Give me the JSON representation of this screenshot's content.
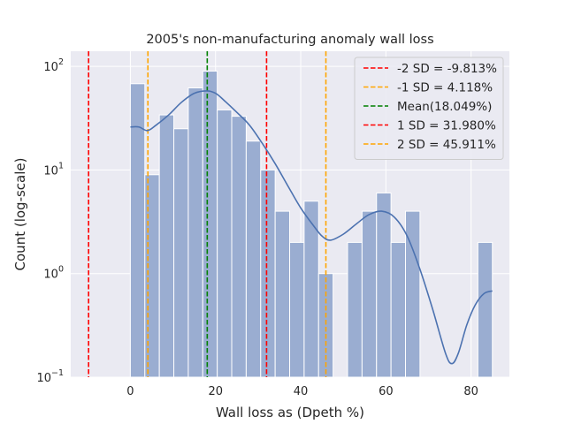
{
  "chart_data": {
    "type": "histogram",
    "title": "2005's non-manufacturing anomaly wall loss",
    "xlabel": "Wall loss as (Dpeth %)",
    "ylabel": "Count (log-scale)",
    "yscale": "log",
    "xlim": [
      -14,
      89
    ],
    "ylim": [
      0.1,
      140
    ],
    "xticks": [
      0,
      20,
      40,
      60,
      80
    ],
    "yticks": [
      {
        "value": 0.1,
        "base": "10",
        "exp": "−1"
      },
      {
        "value": 1,
        "base": "10",
        "exp": "0"
      },
      {
        "value": 10,
        "base": "10",
        "exp": "1"
      },
      {
        "value": 100,
        "base": "10",
        "exp": "2"
      }
    ],
    "grid": true,
    "legend_position": "top-right",
    "colors": {
      "background": "#eaeaf2",
      "bar_fill": "#9aadd1",
      "kde_line": "#4c72b0",
      "sd2": "#ff0000",
      "sd1": "#ffa500",
      "mean": "#008000"
    },
    "bins": [
      {
        "x0": 0.0,
        "x1": 3.4,
        "count": 68
      },
      {
        "x0": 3.4,
        "x1": 6.8,
        "count": 9
      },
      {
        "x0": 6.8,
        "x1": 10.2,
        "count": 34
      },
      {
        "x0": 10.2,
        "x1": 13.6,
        "count": 25
      },
      {
        "x0": 13.6,
        "x1": 17.0,
        "count": 62
      },
      {
        "x0": 17.0,
        "x1": 20.4,
        "count": 90
      },
      {
        "x0": 20.4,
        "x1": 23.8,
        "count": 38
      },
      {
        "x0": 23.8,
        "x1": 27.2,
        "count": 33
      },
      {
        "x0": 27.2,
        "x1": 30.6,
        "count": 19
      },
      {
        "x0": 30.6,
        "x1": 34.0,
        "count": 10
      },
      {
        "x0": 34.0,
        "x1": 37.4,
        "count": 4
      },
      {
        "x0": 37.4,
        "x1": 40.8,
        "count": 2
      },
      {
        "x0": 40.8,
        "x1": 44.2,
        "count": 5
      },
      {
        "x0": 44.2,
        "x1": 47.6,
        "count": 1
      },
      {
        "x0": 47.6,
        "x1": 51.0,
        "count": 0
      },
      {
        "x0": 51.0,
        "x1": 54.4,
        "count": 2
      },
      {
        "x0": 54.4,
        "x1": 57.8,
        "count": 4
      },
      {
        "x0": 57.8,
        "x1": 61.2,
        "count": 6
      },
      {
        "x0": 61.2,
        "x1": 64.6,
        "count": 2
      },
      {
        "x0": 64.6,
        "x1": 68.0,
        "count": 4
      },
      {
        "x0": 68.0,
        "x1": 71.4,
        "count": 0
      },
      {
        "x0": 71.4,
        "x1": 74.8,
        "count": 0
      },
      {
        "x0": 74.8,
        "x1": 78.2,
        "count": 0
      },
      {
        "x0": 78.2,
        "x1": 81.6,
        "count": 0
      },
      {
        "x0": 81.6,
        "x1": 85.0,
        "count": 2
      }
    ],
    "kde": {
      "x": [
        0,
        2,
        4,
        6,
        9,
        12,
        15,
        18,
        20,
        22,
        25,
        28,
        31,
        34,
        37,
        40,
        43,
        45,
        47,
        50,
        53,
        56,
        59,
        62,
        65,
        68,
        71,
        74,
        75.5,
        77,
        79,
        81,
        83,
        85
      ],
      "y": [
        26,
        26,
        24,
        27,
        34,
        45,
        55,
        58,
        55,
        47,
        36,
        27,
        18,
        11.5,
        7,
        4.3,
        2.9,
        2.3,
        2.1,
        2.4,
        3.0,
        3.7,
        4.0,
        3.5,
        2.3,
        1.1,
        0.45,
        0.17,
        0.135,
        0.17,
        0.32,
        0.5,
        0.64,
        0.68
      ]
    },
    "vlines": [
      {
        "label": "-2 SD = -9.813%",
        "x": -9.813,
        "color": "#ff0000"
      },
      {
        "label": "-1 SD = 4.118%",
        "x": 4.118,
        "color": "#ffa500"
      },
      {
        "label": "Mean(18.049%)",
        "x": 18.049,
        "color": "#008000"
      },
      {
        "label": "1 SD = 31.980%",
        "x": 31.98,
        "color": "#ff0000"
      },
      {
        "label": "2 SD = 45.911%",
        "x": 45.911,
        "color": "#ffa500"
      }
    ]
  }
}
